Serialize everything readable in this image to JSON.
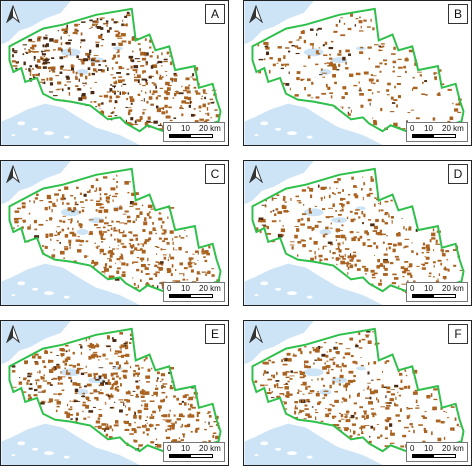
{
  "panels": [
    {
      "label": "A",
      "patch_density": 1.0,
      "dark_fraction": 0.6
    },
    {
      "label": "B",
      "patch_density": 0.45,
      "dark_fraction": 0.25
    },
    {
      "label": "C",
      "patch_density": 0.85,
      "dark_fraction": 0.05
    },
    {
      "label": "D",
      "patch_density": 0.7,
      "dark_fraction": 0.05
    },
    {
      "label": "E",
      "patch_density": 0.95,
      "dark_fraction": 0.3
    },
    {
      "label": "F",
      "patch_density": 0.75,
      "dark_fraction": 0.15
    }
  ],
  "scale": {
    "t0": "0",
    "t1": "10",
    "t2": "20 km"
  },
  "colors": {
    "water": "#cde3f6",
    "land": "#ffffff",
    "boundary": "#2ec04a",
    "patch": "#a9621f",
    "patch_dark": "#4a2a12",
    "frame": "#222222"
  },
  "icons": {
    "north": "north-arrow-icon"
  }
}
